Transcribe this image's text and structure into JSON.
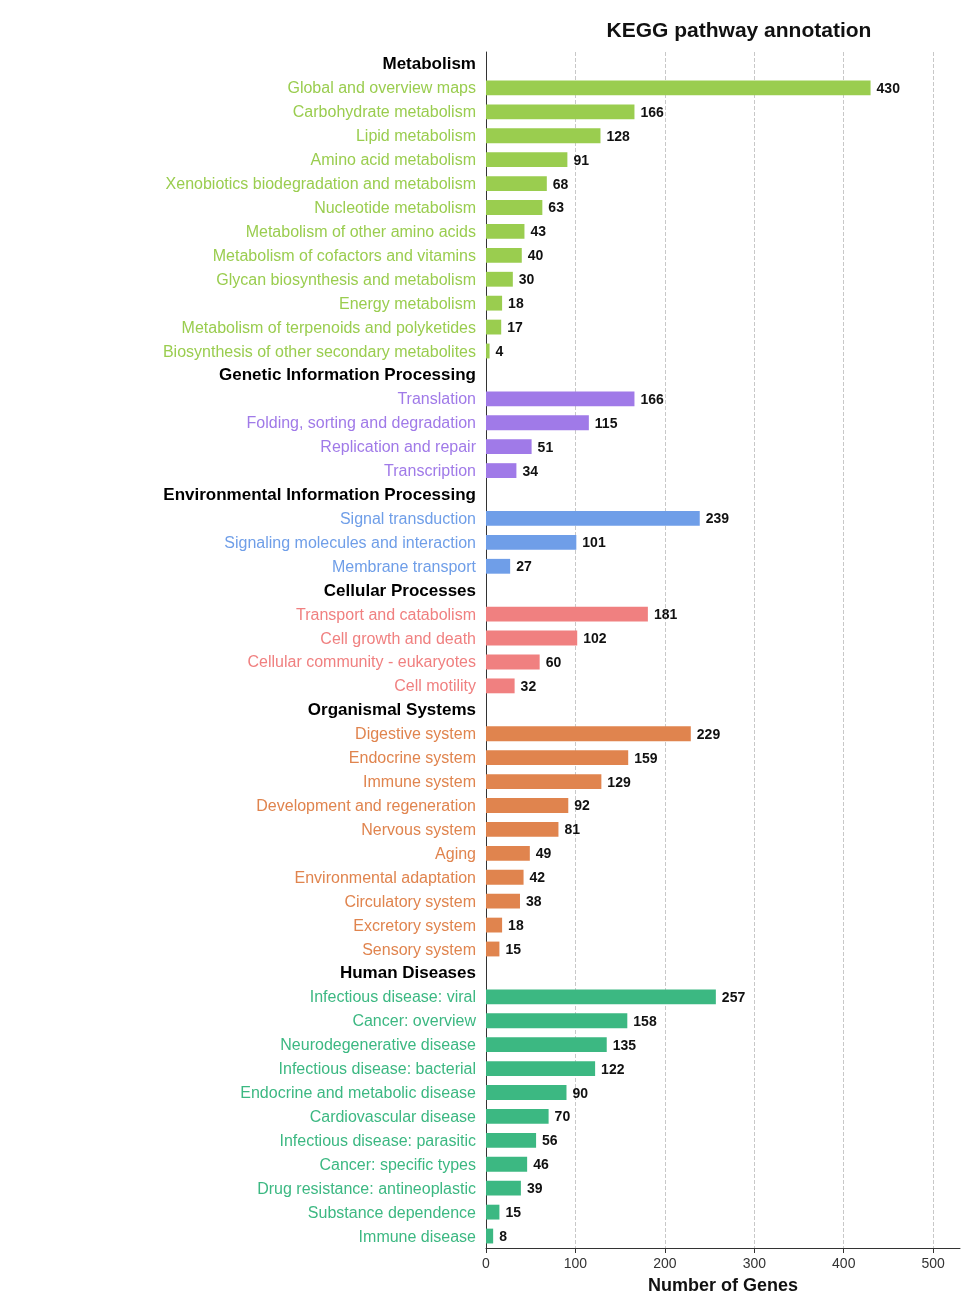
{
  "chart_data": {
    "type": "bar",
    "orientation": "horizontal",
    "title": "KEGG pathway annotation",
    "xlabel": "Number of Genes",
    "categories": [
      "Metabolism",
      "Global and overview maps",
      "Carbohydrate metabolism",
      "Lipid metabolism",
      "Amino acid metabolism",
      "Xenobiotics biodegradation and metabolism",
      "Nucleotide metabolism",
      "Metabolism of other amino acids",
      "Metabolism of cofactors and vitamins",
      "Glycan biosynthesis and metabolism",
      "Energy metabolism",
      "Metabolism of terpenoids and polyketides",
      "Biosynthesis of other secondary metabolites",
      "Genetic Information Processing",
      "Translation",
      "Folding, sorting and degradation",
      "Replication and repair",
      "Transcription",
      "Environmental Information Processing",
      "Signal transduction",
      "Signaling molecules and interaction",
      "Membrane transport",
      "Cellular Processes",
      "Transport and catabolism",
      "Cell growth and death",
      "Cellular community - eukaryotes",
      "Cell motility",
      "Organismal Systems",
      "Digestive system",
      "Endocrine system",
      "Immune system",
      "Development and regeneration",
      "Nervous system",
      "Aging",
      "Environmental adaptation",
      "Circulatory system",
      "Excretory system",
      "Sensory system",
      "Human Diseases",
      "Infectious disease: viral",
      "Cancer: overview",
      "Neurodegenerative disease",
      "Infectious disease: bacterial",
      "Endocrine and metabolic disease",
      "Cardiovascular disease",
      "Infectious disease: parasitic",
      "Cancer: specific types",
      "Drug resistance: antineoplastic",
      "Substance dependence",
      "Immune disease"
    ],
    "values": [
      null,
      430,
      166,
      128,
      91,
      68,
      63,
      43,
      40,
      30,
      18,
      17,
      4,
      null,
      166,
      115,
      51,
      34,
      null,
      239,
      101,
      27,
      null,
      181,
      102,
      60,
      32,
      null,
      229,
      159,
      129,
      92,
      81,
      49,
      42,
      38,
      18,
      15,
      null,
      257,
      158,
      135,
      122,
      90,
      70,
      56,
      46,
      39,
      15,
      8
    ],
    "colors": [
      null,
      "#9acd4f",
      "#9acd4f",
      "#9acd4f",
      "#9acd4f",
      "#9acd4f",
      "#9acd4f",
      "#9acd4f",
      "#9acd4f",
      "#9acd4f",
      "#9acd4f",
      "#9acd4f",
      "#9acd4f",
      null,
      "#a07ae8",
      "#a07ae8",
      "#a07ae8",
      "#a07ae8",
      null,
      "#6f9ee8",
      "#6f9ee8",
      "#6f9ee8",
      null,
      "#f08080",
      "#f08080",
      "#f08080",
      "#f08080",
      null,
      "#e0844e",
      "#e0844e",
      "#e0844e",
      "#e0844e",
      "#e0844e",
      "#e0844e",
      "#e0844e",
      "#e0844e",
      "#e0844e",
      "#e0844e",
      null,
      "#3cb882",
      "#3cb882",
      "#3cb882",
      "#3cb882",
      "#3cb882",
      "#3cb882",
      "#3cb882",
      "#3cb882",
      "#3cb882",
      "#3cb882",
      "#3cb882"
    ],
    "xlim": [
      0,
      530
    ],
    "xticks": [
      0,
      100,
      200,
      300,
      400,
      500
    ],
    "grid": "x",
    "data_labels": true
  }
}
